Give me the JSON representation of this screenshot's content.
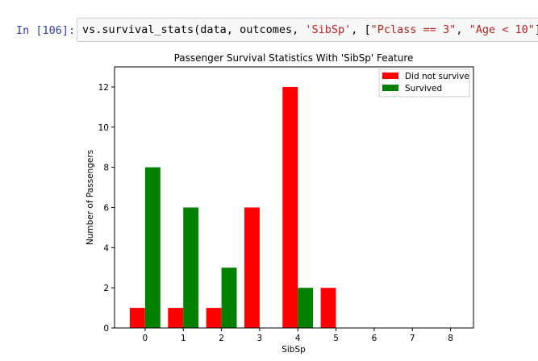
{
  "cell": {
    "prompt": "In [106]:",
    "code_prefix": "vs.survival_stats(data, outcomes, ",
    "code_feature": "'SibSp'",
    "code_mid": ", [",
    "code_filter1": "\"Pclass == 3\"",
    "code_sep": ", ",
    "code_filter2": "\"Age < 10\"",
    "code_suffix": "])"
  },
  "chart_data": {
    "type": "bar",
    "title": "Passenger Survival Statistics With 'SibSp' Feature",
    "xlabel": "SibSp",
    "ylabel": "Number of Passengers",
    "xticks": [
      "0",
      "1",
      "2",
      "3",
      "4",
      "5",
      "6",
      "7",
      "8"
    ],
    "yticks": [
      "0",
      "2",
      "4",
      "6",
      "8",
      "10",
      "12"
    ],
    "ylim": [
      0,
      13
    ],
    "xlim": [
      -0.8,
      8.6
    ],
    "legend_position": "top-right",
    "series": [
      {
        "name": "Did not survive",
        "color": "#ff0000",
        "x": [
          0,
          1,
          2,
          3,
          4,
          5
        ],
        "values": [
          1,
          1,
          1,
          6,
          12,
          2
        ]
      },
      {
        "name": "Survived",
        "color": "#008000",
        "x": [
          0,
          1,
          2,
          3,
          4,
          5
        ],
        "values": [
          8,
          6,
          3,
          0,
          2,
          0
        ]
      }
    ]
  }
}
